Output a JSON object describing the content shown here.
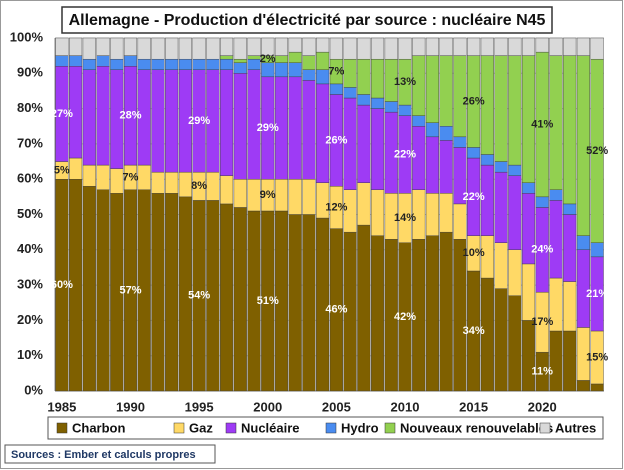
{
  "chart_data": {
    "type": "stacked_bar",
    "title": "Allemagne - Production d'électricité par source : nucléaire N45",
    "source": "Sources : Ember et calculs propres",
    "categories": [
      1985,
      null,
      null,
      null,
      null,
      1990,
      null,
      null,
      null,
      null,
      1995,
      null,
      null,
      null,
      null,
      2000,
      null,
      null,
      null,
      null,
      2005,
      null,
      null,
      null,
      null,
      2010,
      null,
      null,
      null,
      null,
      2015,
      null,
      null,
      null,
      null,
      2020,
      null,
      null,
      null,
      null
    ],
    "ylim": [
      0,
      100
    ],
    "yticks": [
      {
        "value": 0,
        "label": "0%"
      },
      {
        "value": 10,
        "label": "10%"
      },
      {
        "value": 20,
        "label": "20%"
      },
      {
        "value": 30,
        "label": "30%"
      },
      {
        "value": 40,
        "label": "40%"
      },
      {
        "value": 50,
        "label": "50%"
      },
      {
        "value": 60,
        "label": "60%"
      },
      {
        "value": 70,
        "label": "70%"
      },
      {
        "value": 80,
        "label": "80%"
      },
      {
        "value": 90,
        "label": "90%"
      },
      {
        "value": 100,
        "label": "100%"
      }
    ],
    "grid": true,
    "legend": "bottom",
    "series": [
      {
        "name": "Charbon",
        "color": "#7f6000",
        "values": [
          60,
          60,
          58,
          57,
          56,
          57,
          57,
          56,
          56,
          55,
          54,
          54,
          53,
          52,
          51,
          51,
          51,
          50,
          50,
          49,
          46,
          45,
          47,
          44,
          43,
          42,
          43,
          44,
          45,
          43,
          34,
          32,
          29,
          27,
          20,
          11,
          17,
          17,
          3,
          2
        ],
        "value_labels": [
          "60%",
          null,
          null,
          null,
          null,
          "57%",
          null,
          null,
          null,
          null,
          "54%",
          null,
          null,
          null,
          null,
          "51%",
          null,
          null,
          null,
          null,
          "46%",
          null,
          null,
          null,
          null,
          "42%",
          null,
          null,
          null,
          null,
          "34%",
          null,
          null,
          null,
          null,
          "11%",
          null,
          null,
          null,
          null
        ]
      },
      {
        "name": "Gaz",
        "color": "#ffd966",
        "values": [
          5,
          6,
          6,
          7,
          7,
          7,
          7,
          6,
          6,
          7,
          8,
          8,
          8,
          8,
          9,
          9,
          9,
          10,
          10,
          10,
          12,
          12,
          12,
          13,
          13,
          14,
          14,
          12,
          11,
          10,
          10,
          12,
          13,
          13,
          16,
          17,
          15,
          14,
          15,
          15
        ],
        "value_labels": [
          "5%",
          null,
          null,
          null,
          null,
          "7%",
          null,
          null,
          null,
          null,
          "8%",
          null,
          null,
          null,
          null,
          "9%",
          null,
          null,
          null,
          null,
          "12%",
          null,
          null,
          null,
          null,
          "14%",
          null,
          null,
          null,
          null,
          "10%",
          null,
          null,
          null,
          null,
          "17%",
          null,
          null,
          null,
          "15%"
        ]
      },
      {
        "name": "Nucléaire",
        "color": "#9e3bf5",
        "values": [
          27,
          26,
          27,
          28,
          28,
          28,
          27,
          29,
          29,
          29,
          29,
          29,
          30,
          30,
          31,
          29,
          29,
          29,
          28,
          28,
          26,
          26,
          22,
          23,
          23,
          22,
          18,
          16,
          15,
          16,
          22,
          20,
          20,
          21,
          20,
          24,
          22,
          19,
          22,
          21
        ],
        "value_labels": [
          "27%",
          null,
          null,
          null,
          null,
          "28%",
          null,
          null,
          null,
          null,
          "29%",
          null,
          null,
          null,
          null,
          "29%",
          null,
          null,
          null,
          null,
          "26%",
          null,
          null,
          null,
          null,
          "22%",
          null,
          null,
          null,
          null,
          "22%",
          null,
          null,
          null,
          null,
          "24%",
          null,
          null,
          null,
          "21%"
        ]
      },
      {
        "name": "Hydro",
        "color": "#4a8cf0",
        "values": [
          3,
          3,
          3,
          3,
          3,
          3,
          3,
          3,
          3,
          3,
          3,
          3,
          3,
          3,
          3,
          4,
          4,
          4,
          3,
          4,
          3,
          3,
          3,
          3,
          3,
          3,
          3,
          4,
          4,
          3,
          3,
          3,
          3,
          3,
          3,
          3,
          3,
          3,
          4,
          4
        ],
        "value_labels": [
          null,
          null,
          null,
          null,
          null,
          null,
          null,
          null,
          null,
          null,
          null,
          null,
          null,
          null,
          null,
          null,
          null,
          null,
          null,
          null,
          null,
          null,
          null,
          null,
          null,
          null,
          null,
          null,
          null,
          null,
          null,
          null,
          null,
          null,
          null,
          null,
          null,
          null,
          null,
          null
        ]
      },
      {
        "name": "Nouveaux renouvelables",
        "color": "#92d050",
        "values": [
          0,
          0,
          0,
          0,
          0,
          0,
          0,
          0,
          0,
          0,
          0,
          0,
          1,
          1,
          1,
          2,
          2,
          3,
          4,
          5,
          7,
          8,
          10,
          11,
          12,
          13,
          17,
          19,
          20,
          23,
          26,
          28,
          30,
          31,
          36,
          41,
          38,
          42,
          51,
          52
        ],
        "value_labels": [
          null,
          null,
          null,
          null,
          null,
          null,
          null,
          null,
          null,
          null,
          null,
          null,
          null,
          null,
          null,
          "2%",
          null,
          null,
          null,
          null,
          "7%",
          null,
          null,
          null,
          null,
          "13%",
          null,
          null,
          null,
          null,
          "26%",
          null,
          null,
          null,
          null,
          "41%",
          null,
          null,
          null,
          "52%"
        ]
      },
      {
        "name": "Autres",
        "color": "#d9d9d9",
        "values": [
          5,
          5,
          6,
          5,
          6,
          5,
          6,
          6,
          6,
          6,
          6,
          6,
          5,
          6,
          5,
          5,
          5,
          4,
          5,
          4,
          6,
          6,
          6,
          6,
          6,
          6,
          5,
          5,
          5,
          5,
          5,
          5,
          5,
          5,
          5,
          4,
          5,
          5,
          5,
          6
        ],
        "value_labels": [
          null,
          null,
          null,
          null,
          null,
          null,
          null,
          null,
          null,
          null,
          null,
          null,
          null,
          null,
          null,
          null,
          null,
          null,
          null,
          null,
          null,
          null,
          null,
          null,
          null,
          null,
          null,
          null,
          null,
          null,
          null,
          null,
          null,
          null,
          null,
          null,
          null,
          null,
          null,
          null
        ]
      }
    ]
  }
}
